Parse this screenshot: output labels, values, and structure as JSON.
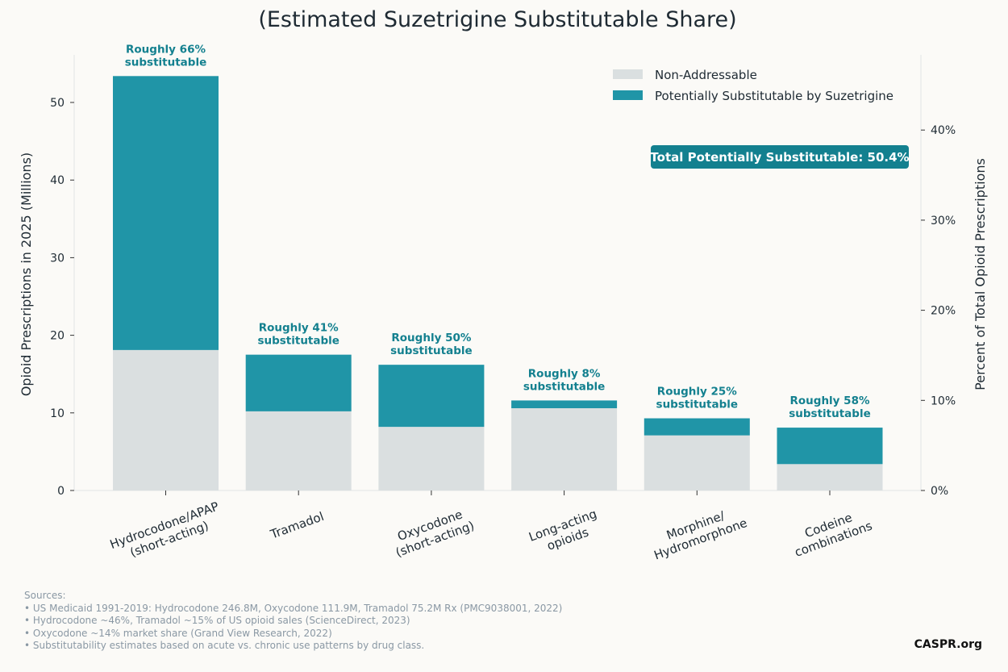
{
  "chart_data": {
    "type": "bar",
    "stacked": true,
    "title": "(Estimated Suzetrigine Substitutable Share)",
    "ylabel": "Opioid Prescriptions in 2025 (Millions)",
    "ylabel_right": "Percent of Total Opioid Prescriptions",
    "ylim": [
      0,
      56
    ],
    "yticks": [
      0,
      10,
      20,
      30,
      40,
      50
    ],
    "yticks_right": [
      "0%",
      "10%",
      "20%",
      "30%",
      "40%"
    ],
    "categories": [
      "Hydrocodone/APAP\n(short-acting)",
      "Tramadol",
      "Oxycodone\n(short-acting)",
      "Long-acting\nopioids",
      "Morphine/\nHydromorphone",
      "Codeine\ncombinations"
    ],
    "series": [
      {
        "name": "Non-Addressable",
        "color": "#dadfe0",
        "values": [
          18.1,
          10.2,
          8.2,
          10.6,
          7.1,
          3.4
        ]
      },
      {
        "name": "Potentially Substitutable by Suzetrigine",
        "color": "#2095a7",
        "values": [
          35.3,
          7.3,
          8.0,
          1.0,
          2.2,
          4.7
        ]
      }
    ],
    "annotations": [
      "Roughly 66%\nsubstitutable",
      "Roughly 41%\nsubstitutable",
      "Roughly 50%\nsubstitutable",
      "Roughly 8%\nsubstitutable",
      "Roughly 25%\nsubstitutable",
      "Roughly 58%\nsubstitutable"
    ],
    "total_label": "Total Potentially Substitutable: 50.4%",
    "legend_position": "top-right",
    "accent": "#13808f"
  },
  "sources": {
    "heading": "Sources:",
    "lines": [
      "• US Medicaid 1991-2019: Hydrocodone 246.8M, Oxycodone 111.9M, Tramadol 75.2M Rx (PMC9038001, 2022)",
      "• Hydrocodone ~46%, Tramadol ~15% of US opioid sales (ScienceDirect, 2023)",
      "• Oxycodone ~14% market share (Grand View Research, 2022)",
      "• Substitutability estimates based on acute vs. chronic use patterns by drug class."
    ]
  },
  "brand": "CASPR.org"
}
